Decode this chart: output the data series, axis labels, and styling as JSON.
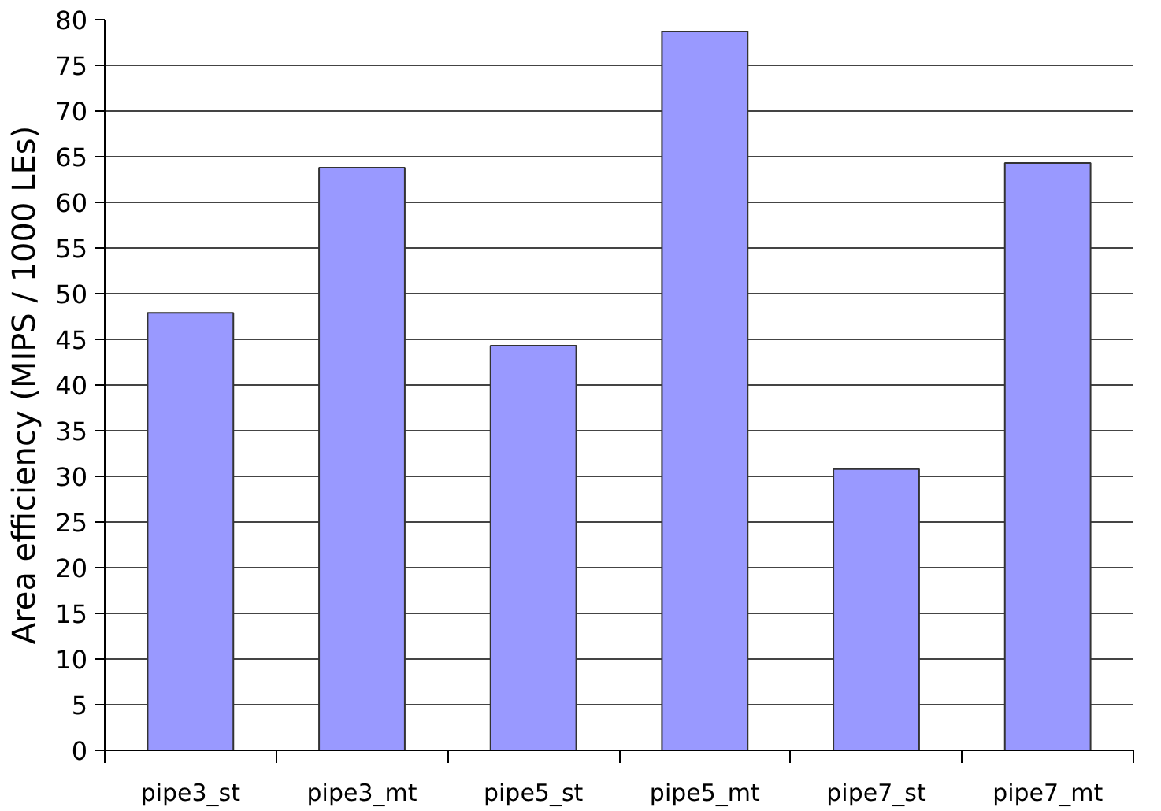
{
  "chart_data": {
    "type": "bar",
    "ylabel": "Area efficiency (MIPS / 1000 LEs)",
    "categories": [
      "pipe3_st",
      "pipe3_mt",
      "pipe5_st",
      "pipe5_mt",
      "pipe7_st",
      "pipe7_mt"
    ],
    "values": [
      47.9,
      63.8,
      44.3,
      78.7,
      30.8,
      64.3
    ],
    "color": "#9999ff",
    "ylim": [
      0,
      80
    ],
    "yticks": [
      0,
      5,
      10,
      15,
      20,
      25,
      30,
      35,
      40,
      45,
      50,
      55,
      60,
      65,
      70,
      75,
      80
    ],
    "grid": "y"
  }
}
